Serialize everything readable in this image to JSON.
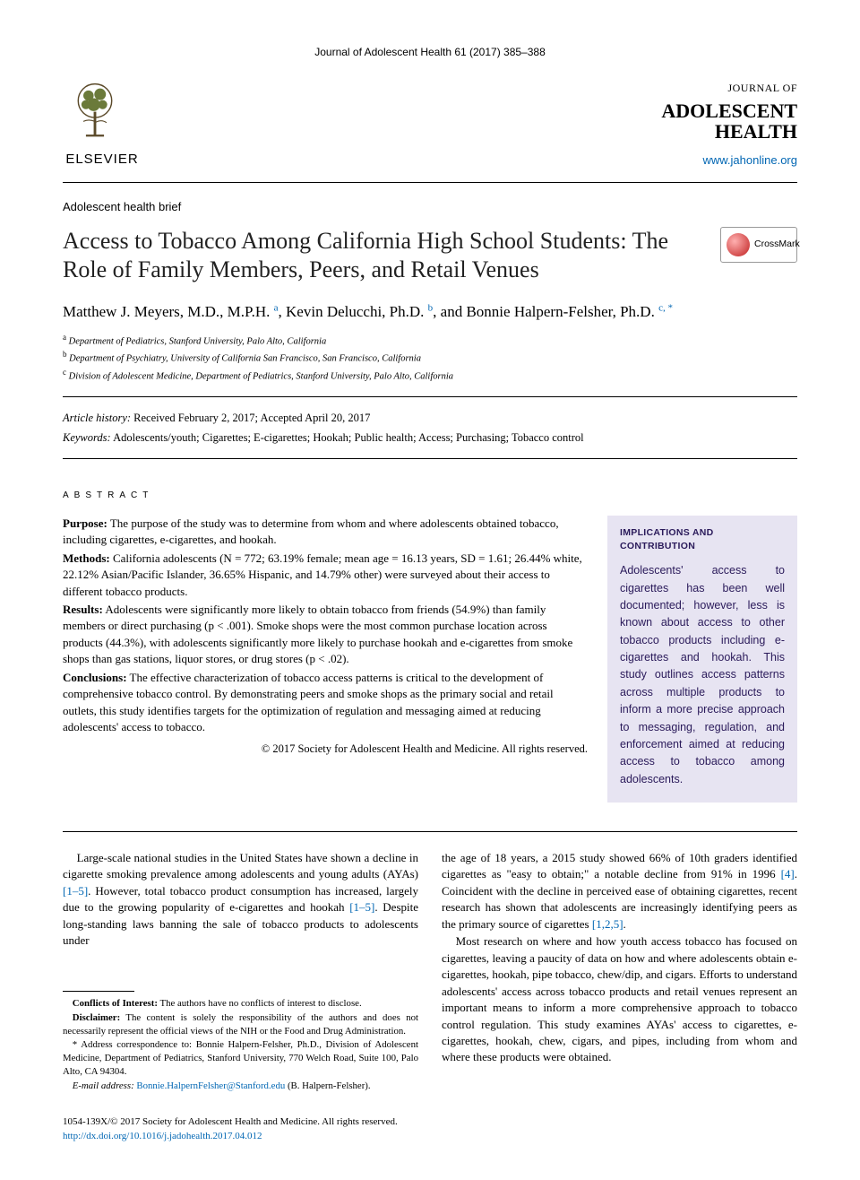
{
  "running_head": "Journal of Adolescent Health 61 (2017) 385–388",
  "publisher": {
    "name": "ELSEVIER"
  },
  "journal": {
    "small_line": "JOURNAL OF",
    "title_line1": "ADOLESCENT",
    "title_line2": "HEALTH",
    "url": "www.jahonline.org"
  },
  "article_type": "Adolescent health brief",
  "title": "Access to Tobacco Among California High School Students: The Role of Family Members, Peers, and Retail Venues",
  "crossmark_label": "CrossMark",
  "authors_html": "Matthew J. Meyers, M.D., M.P.H. <span class='sup'>a</span>, Kevin Delucchi, Ph.D. <span class='sup'>b</span>, and Bonnie Halpern-Felsher, Ph.D. <span class='sup'>c, *</span>",
  "affiliations": [
    {
      "label": "a",
      "text": "Department of Pediatrics, Stanford University, Palo Alto, California"
    },
    {
      "label": "b",
      "text": "Department of Psychiatry, University of California San Francisco, San Francisco, California"
    },
    {
      "label": "c",
      "text": "Division of Adolescent Medicine, Department of Pediatrics, Stanford University, Palo Alto, California"
    }
  ],
  "history": {
    "label": "Article history:",
    "text": "Received February 2, 2017; Accepted April 20, 2017"
  },
  "keywords": {
    "label": "Keywords:",
    "text": "Adolescents/youth; Cigarettes; E-cigarettes; Hookah; Public health; Access; Purchasing; Tobacco control"
  },
  "abstract_heading": "ABSTRACT",
  "abstract": {
    "purpose": {
      "label": "Purpose:",
      "text": "The purpose of the study was to determine from whom and where adolescents obtained tobacco, including cigarettes, e-cigarettes, and hookah."
    },
    "methods": {
      "label": "Methods:",
      "text": "California adolescents (N = 772; 63.19% female; mean age = 16.13 years, SD = 1.61; 26.44% white, 22.12% Asian/Pacific Islander, 36.65% Hispanic, and 14.79% other) were surveyed about their access to different tobacco products."
    },
    "results": {
      "label": "Results:",
      "text": "Adolescents were significantly more likely to obtain tobacco from friends (54.9%) than family members or direct purchasing (p < .001). Smoke shops were the most common purchase location across products (44.3%), with adolescents significantly more likely to purchase hookah and e-cigarettes from smoke shops than gas stations, liquor stores, or drug stores (p < .02)."
    },
    "conclusions": {
      "label": "Conclusions:",
      "text": "The effective characterization of tobacco access patterns is critical to the development of comprehensive tobacco control. By demonstrating peers and smoke shops as the primary social and retail outlets, this study identifies targets for the optimization of regulation and messaging aimed at reducing adolescents' access to tobacco."
    },
    "copyright": "© 2017 Society for Adolescent Health and Medicine. All rights reserved."
  },
  "implications": {
    "heading": "IMPLICATIONS AND CONTRIBUTION",
    "text": "Adolescents' access to cigarettes has been well documented; however, less is known about access to other tobacco products including e-cigarettes and hookah. This study outlines access patterns across multiple products to inform a more precise approach to messaging, regulation, and enforcement aimed at reducing access to tobacco among adolescents."
  },
  "body": {
    "p1_a": "Large-scale national studies in the United States have shown a decline in cigarette smoking prevalence among adolescents and young adults (AYAs) ",
    "p1_ref1": "[1–5]",
    "p1_b": ". However, total tobacco product consumption has increased, largely due to the growing popularity of e-cigarettes and hookah ",
    "p1_ref2": "[1–5]",
    "p1_c": ". Despite long-standing laws banning the sale of tobacco products to adolescents under ",
    "p1_d": "the age of 18 years, a 2015 study showed 66% of 10th graders identified cigarettes as \"easy to obtain;\" a notable decline from 91% in 1996 ",
    "p1_ref3": "[4]",
    "p1_e": ". Coincident with the decline in perceived ease of obtaining cigarettes, recent research has shown that adolescents are increasingly identifying peers as the primary source of cigarettes ",
    "p1_ref4": "[1,2,5]",
    "p1_f": ".",
    "p2": "Most research on where and how youth access tobacco has focused on cigarettes, leaving a paucity of data on how and where adolescents obtain e-cigarettes, hookah, pipe tobacco, chew/dip, and cigars. Efforts to understand adolescents' access across tobacco products and retail venues represent an important means to inform a more comprehensive approach to tobacco control regulation. This study examines AYAs' access to cigarettes, e-cigarettes, hookah, chew, cigars, and pipes, including from whom and where these products were obtained."
  },
  "footnotes": {
    "conflicts_label": "Conflicts of Interest:",
    "conflicts_text": "The authors have no conflicts of interest to disclose.",
    "disclaimer_label": "Disclaimer:",
    "disclaimer_text": "The content is solely the responsibility of the authors and does not necessarily represent the official views of the NIH or the Food and Drug Administration.",
    "correspondence_lead": "* Address correspondence to: Bonnie Halpern-Felsher, Ph.D., Division of Adolescent Medicine, Department of Pediatrics, Stanford University, 770 Welch Road, Suite 100, Palo Alto, CA 94304.",
    "email_label": "E-mail address:",
    "email": "Bonnie.HalpernFelsher@Stanford.edu",
    "email_person": "(B. Halpern-Felsher)."
  },
  "bottom": {
    "issn_line": "1054-139X/© 2017 Society for Adolescent Health and Medicine. All rights reserved.",
    "doi": "http://dx.doi.org/10.1016/j.jadohealth.2017.04.012"
  },
  "colors": {
    "link": "#0066b3",
    "implications_bg": "#e7e4f2",
    "implications_fg": "#2a1a5a"
  }
}
